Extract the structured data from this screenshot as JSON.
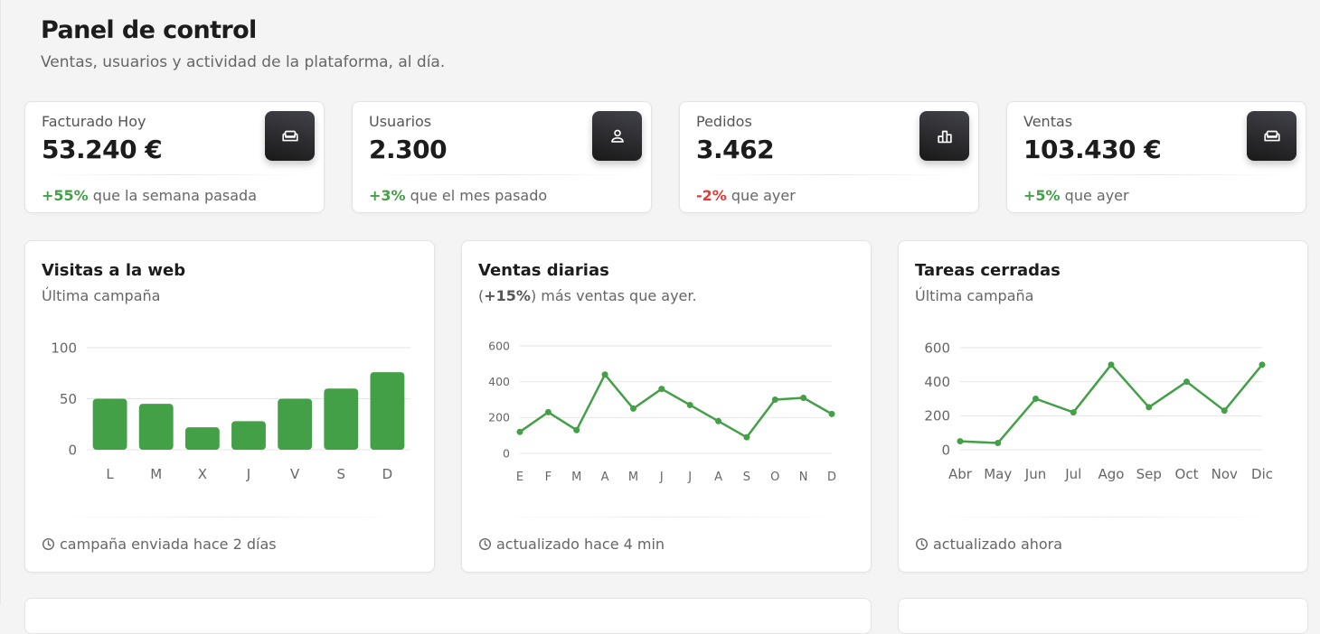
{
  "header": {
    "title": "Panel de control",
    "subtitle": "Ventas, usuarios y actividad de la plataforma, al día."
  },
  "stats": [
    {
      "label": "Facturado Hoy",
      "value": "53.240 €",
      "delta": "+55%",
      "delta_type": "positive",
      "footer": " que la semana pasada",
      "icon": "sofa-icon"
    },
    {
      "label": "Usuarios",
      "value": "2.300",
      "delta": "+3%",
      "delta_type": "positive",
      "footer": " que el mes pasado",
      "icon": "person-icon"
    },
    {
      "label": "Pedidos",
      "value": "3.462",
      "delta": "-2%",
      "delta_type": "negative",
      "footer": " que ayer",
      "icon": "leaderboard-icon"
    },
    {
      "label": "Ventas",
      "value": "103.430 €",
      "delta": "+5%",
      "delta_type": "positive",
      "footer": " que ayer",
      "icon": "sofa-icon"
    }
  ],
  "charts": [
    {
      "title": "Visitas a la web",
      "subtitle": "Última campaña",
      "footer": "campaña enviada hace 2 días"
    },
    {
      "title": "Ventas diarias",
      "subtitle_highlight": "+15%",
      "subtitle_rest": " más ventas que ayer.",
      "footer": "actualizado hace 4 min"
    },
    {
      "title": "Tareas cerradas",
      "subtitle": "Última campaña",
      "footer": "actualizado ahora"
    }
  ],
  "colors": {
    "accent_green": "#43a047",
    "negative_red": "#e53935",
    "icon_bg_dark": "#262626",
    "grid": "#e6e6e6",
    "axis_text": "#666666"
  },
  "chart_data": [
    {
      "type": "bar",
      "categories": [
        "L",
        "M",
        "X",
        "J",
        "V",
        "S",
        "D"
      ],
      "values": [
        50,
        45,
        22,
        28,
        50,
        60,
        76
      ],
      "ylim": [
        0,
        100
      ],
      "yticks": [
        0,
        50,
        100
      ],
      "grid": true,
      "color": "#43a047"
    },
    {
      "type": "line",
      "categories": [
        "E",
        "F",
        "M",
        "A",
        "M",
        "J",
        "J",
        "A",
        "S",
        "O",
        "N",
        "D"
      ],
      "values": [
        120,
        230,
        130,
        440,
        250,
        360,
        270,
        180,
        90,
        300,
        310,
        220
      ],
      "ylim": [
        0,
        600
      ],
      "yticks": [
        0,
        200,
        400,
        600
      ],
      "grid": true,
      "color": "#43a047"
    },
    {
      "type": "line",
      "categories": [
        "Abr",
        "May",
        "Jun",
        "Jul",
        "Ago",
        "Sep",
        "Oct",
        "Nov",
        "Dic"
      ],
      "values": [
        50,
        40,
        300,
        220,
        500,
        250,
        400,
        230,
        500
      ],
      "ylim": [
        0,
        600
      ],
      "yticks": [
        0,
        200,
        400,
        600
      ],
      "grid": true,
      "color": "#43a047"
    }
  ]
}
